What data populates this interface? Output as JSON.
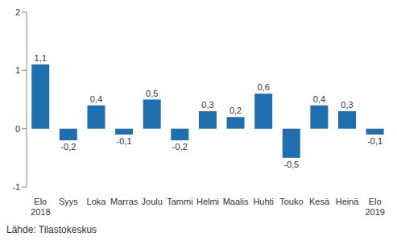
{
  "chart_data": {
    "type": "bar",
    "categories": [
      "Elo 2018",
      "Syys",
      "Loka",
      "Marras",
      "Joulu",
      "Tammi",
      "Helmi",
      "Maalis",
      "Huhti",
      "Touko",
      "Kesä",
      "Heinä",
      "Elo 2019"
    ],
    "values": [
      1.1,
      -0.2,
      0.4,
      -0.1,
      0.5,
      -0.2,
      0.3,
      0.2,
      0.6,
      -0.5,
      0.4,
      0.3,
      -0.1
    ],
    "value_labels": [
      "1,1",
      "-0,2",
      "0,4",
      "-0,1",
      "0,5",
      "-0,2",
      "0,3",
      "0,2",
      "0,6",
      "-0,5",
      "0,4",
      "0,3",
      "-0,1"
    ],
    "color": "#1f6fae",
    "ylim": [
      -1,
      2
    ],
    "yticks": [
      -1,
      0,
      1,
      2
    ],
    "grid": false,
    "data_labels": true,
    "source": "Lähde: Tilastokeskus"
  }
}
